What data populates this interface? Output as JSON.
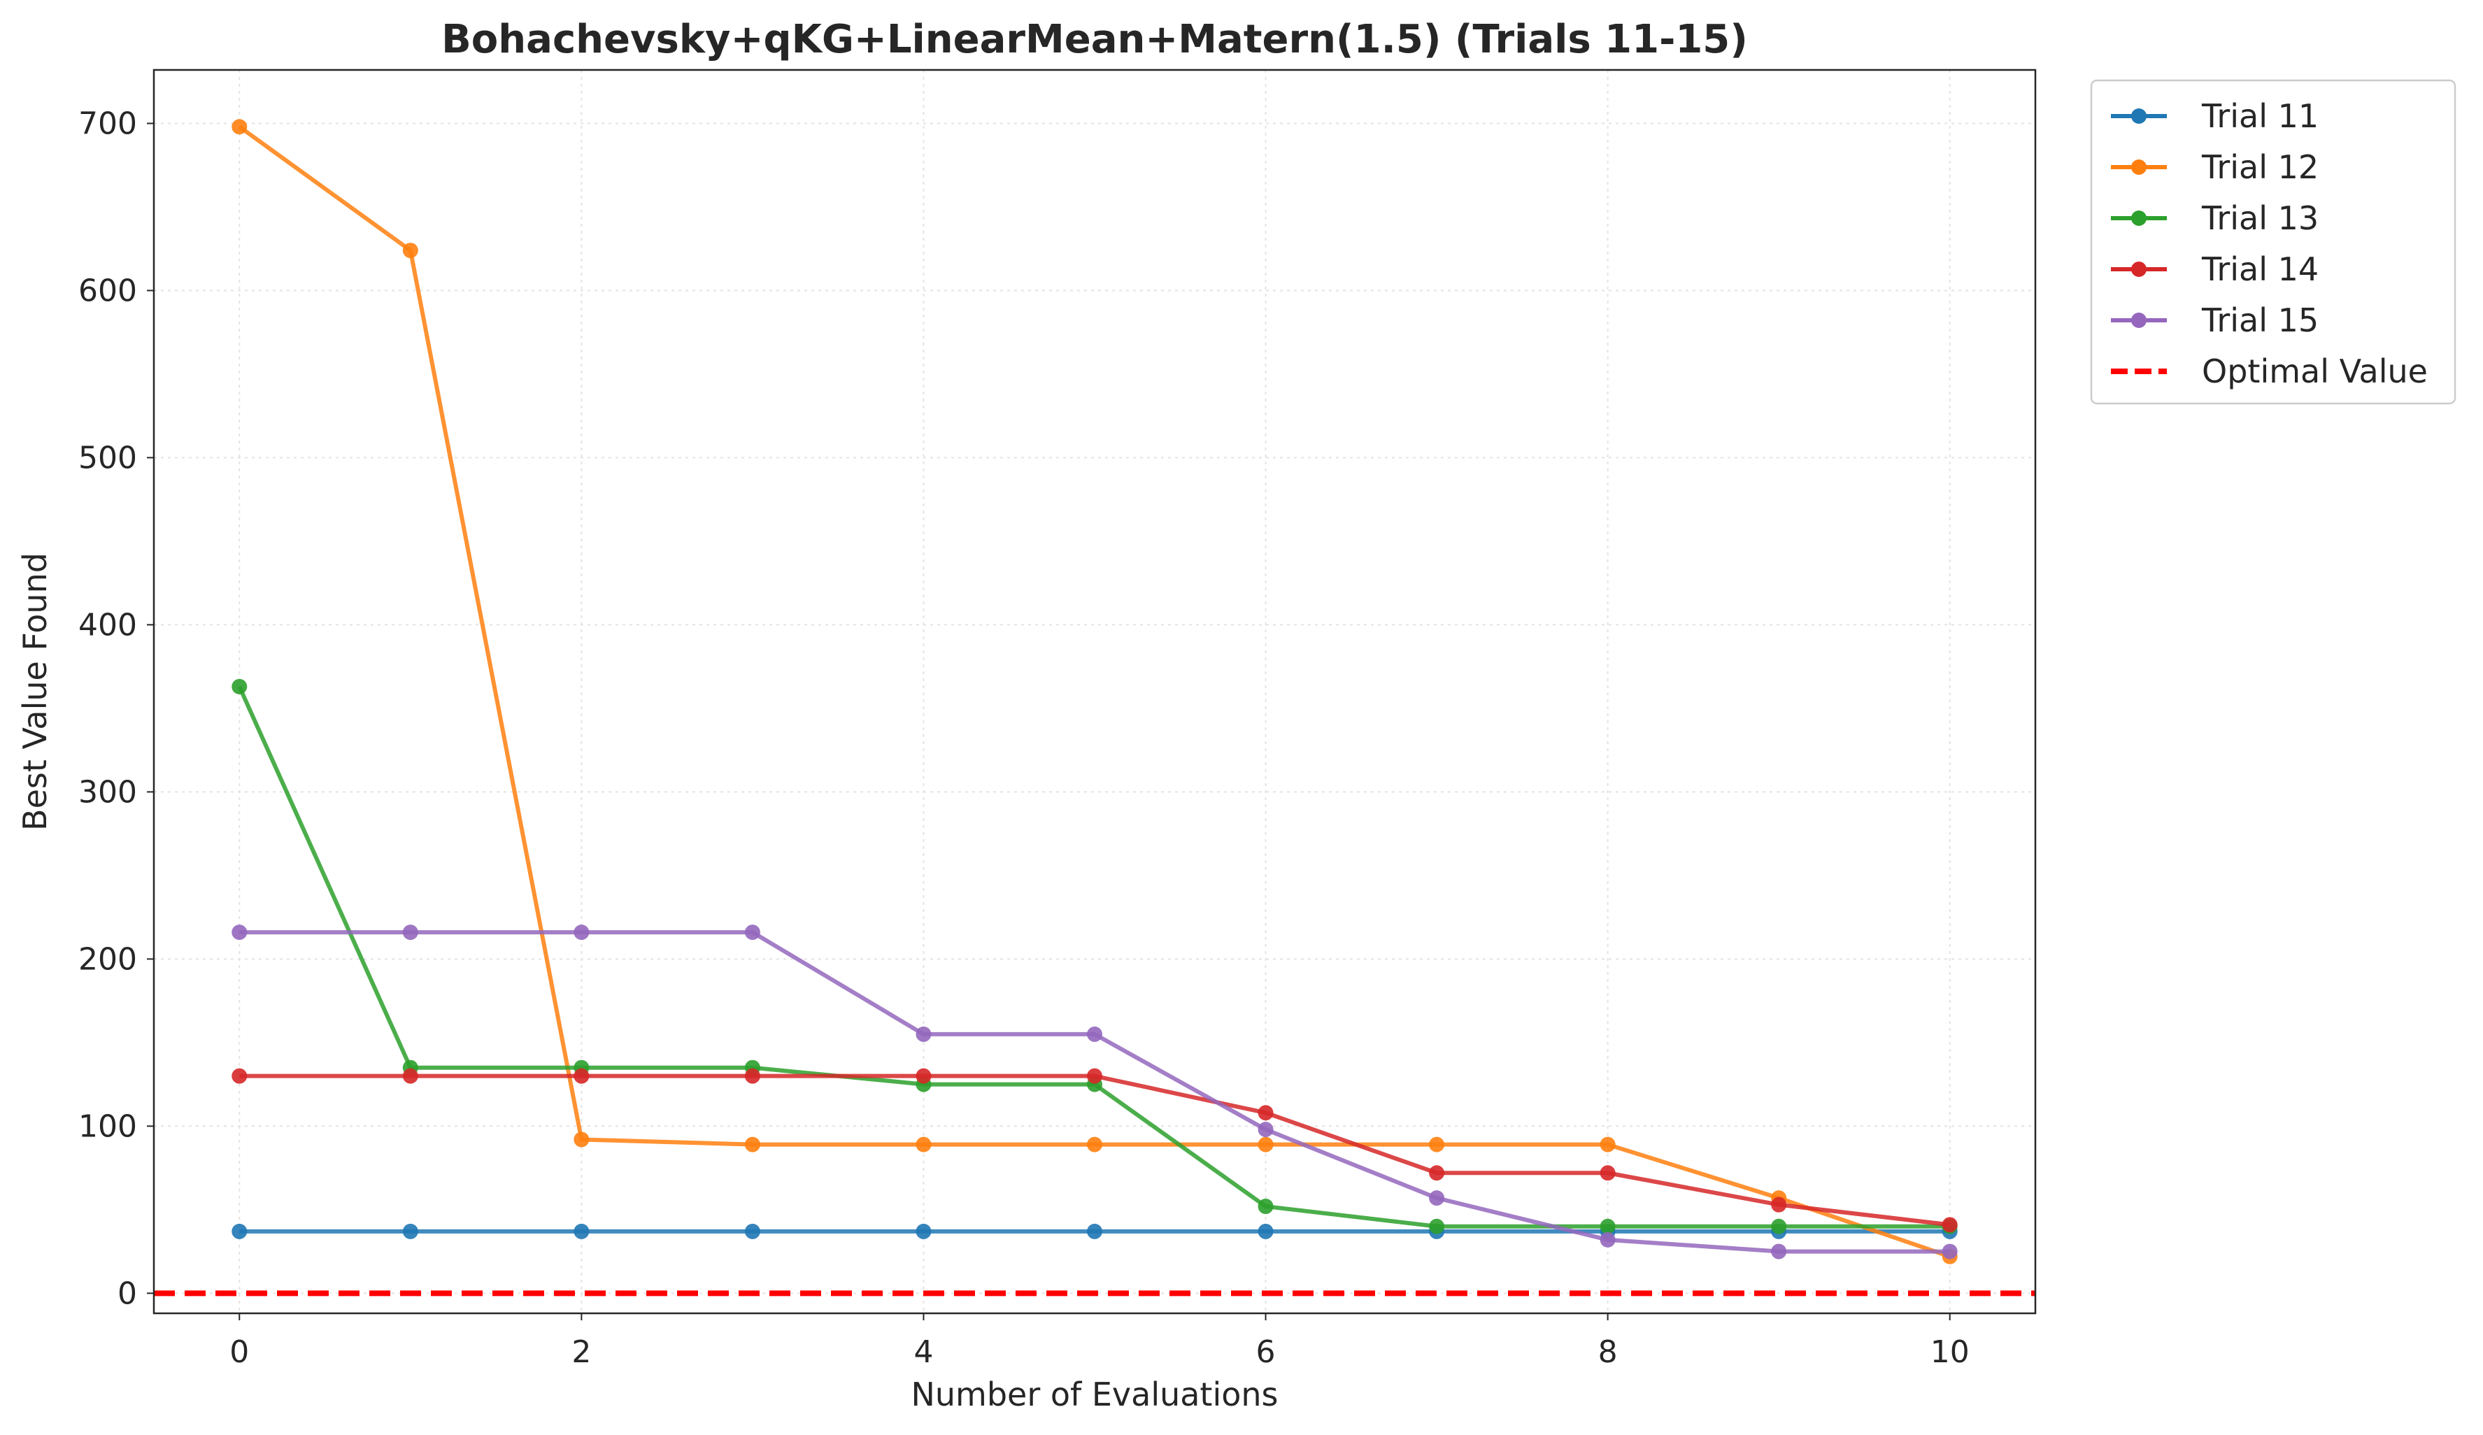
{
  "chart_data": {
    "type": "line",
    "title": "Bohachevsky+qKG+LinearMean+Matern(1.5) (Trials 11-15)",
    "xlabel": "Number of Evaluations",
    "ylabel": "Best Value Found",
    "xlim": [
      -0.5,
      10.5
    ],
    "ylim": [
      -12,
      732
    ],
    "xticks": [
      0,
      2,
      4,
      6,
      8,
      10
    ],
    "yticks": [
      0,
      100,
      200,
      300,
      400,
      500,
      600,
      700
    ],
    "grid": true,
    "legend_position": "outside-top-right",
    "x": [
      0,
      1,
      2,
      3,
      4,
      5,
      6,
      7,
      8,
      9,
      10
    ],
    "series": [
      {
        "name": "Trial 11",
        "color": "#1f77b4",
        "values": [
          37,
          37,
          37,
          37,
          37,
          37,
          37,
          37,
          37,
          37,
          37
        ]
      },
      {
        "name": "Trial 12",
        "color": "#ff7f0e",
        "values": [
          698,
          624,
          92,
          89,
          89,
          89,
          89,
          89,
          89,
          57,
          22
        ]
      },
      {
        "name": "Trial 13",
        "color": "#2ca02c",
        "values": [
          363,
          135,
          135,
          135,
          125,
          125,
          52,
          40,
          40,
          40,
          40
        ]
      },
      {
        "name": "Trial 14",
        "color": "#d62728",
        "values": [
          130,
          130,
          130,
          130,
          130,
          130,
          108,
          72,
          72,
          53,
          41
        ]
      },
      {
        "name": "Trial 15",
        "color": "#9467bd",
        "values": [
          216,
          216,
          216,
          216,
          155,
          155,
          98,
          57,
          32,
          25,
          25
        ]
      }
    ],
    "reference_line": {
      "name": "Optimal Value",
      "value": 0,
      "color": "#ff0000",
      "style": "dashed"
    }
  }
}
